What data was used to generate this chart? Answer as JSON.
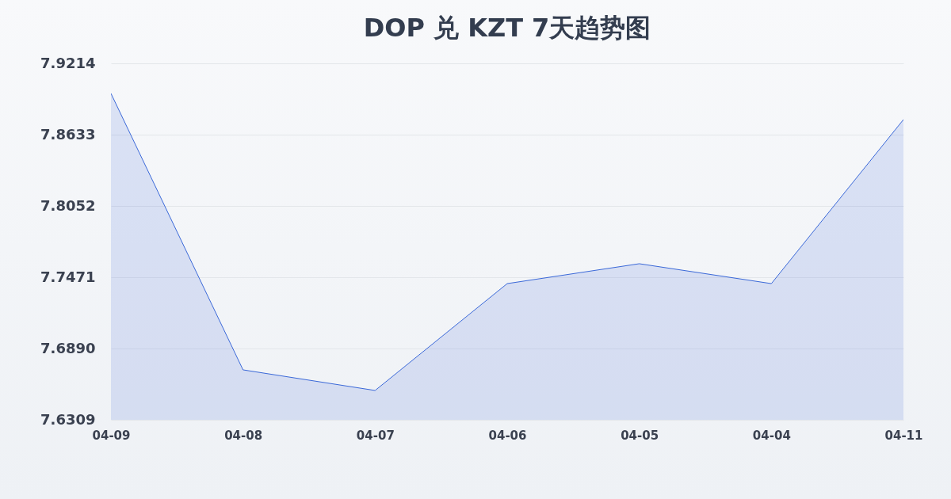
{
  "chart_data": {
    "type": "area",
    "title": "DOP 兑 KZT 7天趋势图",
    "categories": [
      "04-09",
      "04-08",
      "04-07",
      "04-06",
      "04-05",
      "04-04",
      "04-11"
    ],
    "series": [
      {
        "color": "#3a68d8",
        "values": [
          7.8969,
          7.6716,
          7.6548,
          7.7419,
          7.7581,
          7.7419,
          7.8756
        ]
      }
    ],
    "ylim": [
      7.6309,
      7.9214
    ],
    "yticks": [
      7.6309,
      {
        "value": 7.689,
        "label": "7.6890"
      },
      7.7471,
      7.8052,
      7.8633,
      7.9214
    ],
    "grid": "y"
  }
}
